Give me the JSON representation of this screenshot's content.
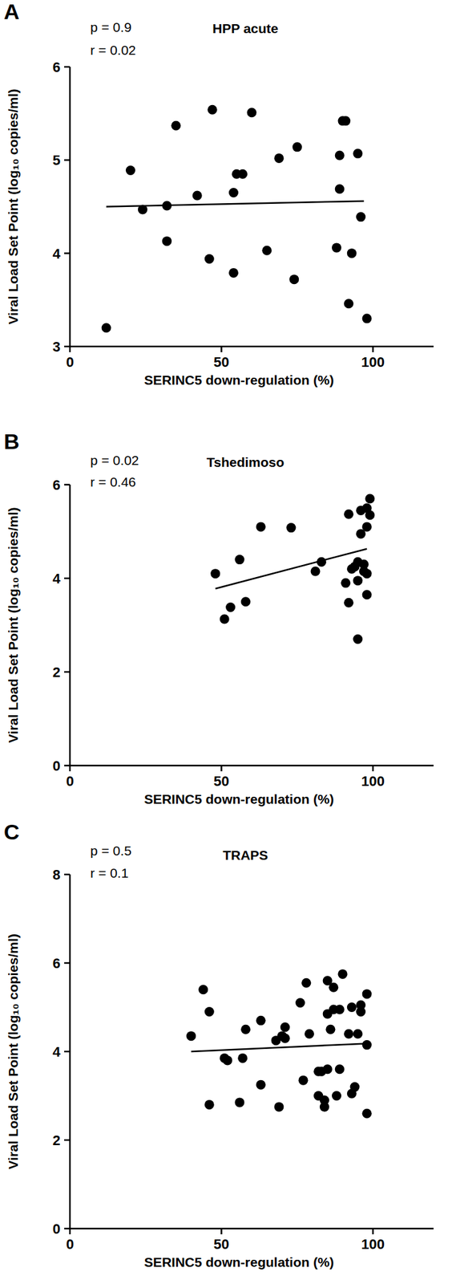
{
  "chart_data": [
    {
      "type": "scatter",
      "panel": "A",
      "title": "HPP acute",
      "xlabel": "SERINC5 down-regulation (%)",
      "ylabel": "Viral Load Set Point (log₁₀ copies/ml)",
      "annotations": [
        "p = 0.9",
        "r = 0.02"
      ],
      "xlim": [
        0,
        120
      ],
      "xticks": [
        0,
        50,
        100
      ],
      "ylim": [
        3,
        6
      ],
      "yticks": [
        3,
        4,
        5,
        6
      ],
      "color": "#000000",
      "marker": "circle",
      "x": [
        12,
        20,
        24,
        32,
        32,
        35,
        42,
        46,
        47,
        54,
        54,
        55,
        57,
        60,
        65,
        69,
        74,
        75,
        88,
        89,
        89,
        90,
        91,
        93,
        92,
        95,
        96,
        98
      ],
      "values": [
        3.2,
        4.89,
        4.47,
        4.51,
        4.13,
        5.37,
        4.62,
        3.94,
        5.54,
        3.79,
        4.65,
        4.85,
        4.85,
        5.51,
        4.03,
        5.02,
        3.72,
        5.14,
        4.06,
        5.05,
        4.69,
        5.42,
        5.42,
        4.0,
        3.46,
        5.07,
        4.39,
        3.3
      ],
      "trend_line": {
        "x": [
          12,
          97
        ],
        "y": [
          4.5,
          4.56
        ]
      }
    },
    {
      "type": "scatter",
      "panel": "B",
      "title": "Tshedimoso",
      "xlabel": "SERINC5 down-regulation (%)",
      "ylabel": "Viral Load Set Point (log₁₀ copies/ml)",
      "annotations": [
        "p = 0.02",
        "r = 0.46"
      ],
      "xlim": [
        0,
        120
      ],
      "xticks": [
        0,
        50,
        100
      ],
      "ylim": [
        0,
        6
      ],
      "yticks": [
        0,
        2,
        4,
        6
      ],
      "color": "#000000",
      "marker": "circle",
      "x": [
        48,
        51,
        53,
        56,
        58,
        63,
        73,
        81,
        83,
        91,
        92,
        92,
        93,
        94,
        95,
        95,
        95,
        96,
        96,
        97,
        97,
        98,
        98,
        98,
        98,
        99,
        99
      ],
      "values": [
        4.1,
        3.13,
        3.38,
        4.4,
        3.5,
        5.1,
        5.08,
        4.15,
        4.35,
        3.9,
        5.37,
        3.48,
        4.2,
        4.25,
        2.7,
        3.95,
        4.35,
        4.95,
        5.45,
        4.15,
        4.3,
        3.65,
        5.1,
        5.5,
        4.1,
        5.7,
        5.35
      ],
      "trend_line": {
        "x": [
          48,
          98
        ],
        "y": [
          3.78,
          4.63
        ]
      }
    },
    {
      "type": "scatter",
      "panel": "C",
      "title": "TRAPS",
      "xlabel": "SERINC5 down-regulation (%)",
      "ylabel": "Viral Load Set Point (log₁₀ copies/ml)",
      "annotations": [
        "p = 0.5",
        "r = 0.1"
      ],
      "xlim": [
        0,
        120
      ],
      "xticks": [
        0,
        50,
        100
      ],
      "ylim": [
        0,
        8
      ],
      "yticks": [
        0,
        2,
        4,
        6,
        8
      ],
      "color": "#000000",
      "marker": "circle",
      "x": [
        40,
        44,
        46,
        46,
        51,
        52,
        56,
        57,
        58,
        63,
        63,
        68,
        69,
        70,
        71,
        71,
        76,
        77,
        78,
        79,
        82,
        82,
        83,
        84,
        84,
        85,
        85,
        85,
        86,
        87,
        87,
        88,
        89,
        89,
        90,
        92,
        93,
        93,
        94,
        95,
        96,
        96,
        98,
        98,
        98
      ],
      "values": [
        4.35,
        5.4,
        4.9,
        2.8,
        3.85,
        3.8,
        2.85,
        3.85,
        4.5,
        4.7,
        3.25,
        4.25,
        2.75,
        4.35,
        4.55,
        4.3,
        5.1,
        3.35,
        5.55,
        4.4,
        3.55,
        3.0,
        3.55,
        2.75,
        2.9,
        4.85,
        5.6,
        3.6,
        4.5,
        5.45,
        4.95,
        3.0,
        4.95,
        3.6,
        5.75,
        4.4,
        5.0,
        3.05,
        3.2,
        4.4,
        5.05,
        4.9,
        5.3,
        4.15,
        2.6
      ],
      "trend_line": {
        "x": [
          40,
          98
        ],
        "y": [
          4.0,
          4.18
        ]
      }
    }
  ]
}
